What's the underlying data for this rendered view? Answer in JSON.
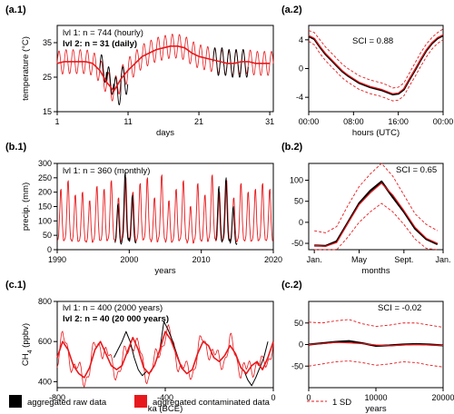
{
  "legend": {
    "raw": "aggregated raw data",
    "contaminated": "aggregated contaminated data",
    "sd": "1 SD",
    "colors": {
      "raw": "#000000",
      "contaminated": "#e8191c",
      "sd": "#e8191c"
    }
  },
  "chart_data": [
    {
      "id": "a1",
      "panel_label": "(a.1)",
      "type": "line",
      "xlabel": "days",
      "ylabel": "temperature (°C)",
      "xlim": [
        1,
        31.5
      ],
      "ylim": [
        15,
        40
      ],
      "xticks": [
        1,
        11,
        21,
        31
      ],
      "yticks": [
        15,
        25,
        35
      ],
      "annotations": [
        {
          "text": "lvl 1: n = 744 (hourly)",
          "bold": false
        },
        {
          "text": "lvl 2: n = 31 (daily)",
          "bold": true
        }
      ],
      "hourly_amplitude": 3.5,
      "daily_mean": [
        29,
        29.5,
        29.5,
        29.5,
        29.5,
        29,
        27,
        23.5,
        21,
        24.5,
        27,
        29,
        31,
        32,
        33,
        33.5,
        34,
        34,
        33.5,
        32,
        31,
        30.5,
        30,
        29.5,
        29,
        29,
        29.5,
        29.5,
        29,
        29,
        29
      ],
      "raw_daily_mean": [
        null,
        null,
        null,
        null,
        null,
        null,
        27.5,
        24,
        21,
        24,
        null,
        null,
        null,
        null,
        null,
        null,
        null,
        null,
        null,
        null,
        null,
        null,
        29.5,
        29.5,
        29,
        29,
        29,
        null,
        null,
        null,
        null
      ]
    },
    {
      "id": "a2",
      "panel_label": "(a.2)",
      "type": "line",
      "xlabel": "hours (UTC)",
      "ylabel": "",
      "xlim": [
        0,
        24
      ],
      "ylim": [
        -6,
        6
      ],
      "xticks": [
        0,
        8,
        16,
        24
      ],
      "xtick_labels": [
        "00:00",
        "08:00",
        "16:00",
        "00:00"
      ],
      "yticks": [
        -4,
        0,
        4
      ],
      "annotations": [
        {
          "text": "SCI = 0.88",
          "bold": false
        }
      ],
      "x": [
        0,
        1,
        2,
        3,
        4,
        5,
        6,
        7,
        8,
        9,
        10,
        11,
        12,
        13,
        14,
        15,
        16,
        17,
        18,
        19,
        20,
        21,
        22,
        23,
        24
      ],
      "series": [
        {
          "key": "raw",
          "values": [
            4.5,
            4.1,
            3.0,
            2.0,
            1.2,
            0.4,
            -0.4,
            -1.0,
            -1.5,
            -2.0,
            -2.3,
            -2.6,
            -2.8,
            -3.0,
            -3.3,
            -3.6,
            -3.5,
            -2.9,
            -1.5,
            -0.2,
            1.2,
            2.5,
            3.5,
            4.2,
            4.6
          ]
        },
        {
          "key": "contaminated",
          "values": [
            4.6,
            4.2,
            3.1,
            2.1,
            1.3,
            0.5,
            -0.3,
            -0.9,
            -1.4,
            -1.9,
            -2.2,
            -2.5,
            -2.7,
            -2.9,
            -3.2,
            -3.5,
            -3.4,
            -2.8,
            -1.4,
            -0.1,
            1.3,
            2.6,
            3.6,
            4.3,
            4.7
          ]
        },
        {
          "key": "sd",
          "values": [
            5.3,
            5.0,
            4.0,
            3.0,
            2.2,
            1.4,
            0.6,
            0.0,
            -0.5,
            -1.0,
            -1.3,
            -1.6,
            -1.8,
            -2.0,
            -2.3,
            -2.7,
            -2.6,
            -2.0,
            -0.6,
            0.8,
            2.2,
            3.4,
            4.3,
            5.0,
            5.5
          ]
        },
        {
          "key": "sd",
          "values": [
            3.8,
            3.3,
            2.1,
            1.1,
            0.3,
            -0.5,
            -1.3,
            -1.9,
            -2.4,
            -2.9,
            -3.2,
            -3.5,
            -3.7,
            -3.9,
            -4.2,
            -4.5,
            -4.4,
            -3.8,
            -2.4,
            -1.1,
            0.3,
            1.6,
            2.7,
            3.5,
            4.0
          ]
        }
      ]
    },
    {
      "id": "b1",
      "panel_label": "(b.1)",
      "type": "line",
      "xlabel": "years",
      "ylabel": "precip. (mm)",
      "xlim": [
        1990,
        2020
      ],
      "ylim": [
        0,
        300
      ],
      "xticks": [
        1990,
        2000,
        2010,
        2020
      ],
      "yticks": [
        0,
        50,
        100,
        150,
        200,
        250,
        300
      ],
      "annotations": [
        {
          "text": "lvl 1: n = 360 (monthly)",
          "bold": false
        }
      ],
      "annual_peak": [
        210,
        240,
        190,
        200,
        170,
        220,
        210,
        240,
        180,
        250,
        200,
        230,
        250,
        180,
        260,
        170,
        210,
        240,
        150,
        230,
        190,
        260,
        200,
        240,
        180,
        230,
        200,
        210,
        230,
        210
      ],
      "raw_annual_peak": [
        null,
        null,
        null,
        null,
        null,
        null,
        null,
        null,
        160,
        270,
        190,
        null,
        null,
        null,
        null,
        null,
        null,
        null,
        null,
        null,
        null,
        null,
        220,
        250,
        150,
        null,
        null,
        null,
        null,
        null
      ]
    },
    {
      "id": "b2",
      "panel_label": "(b.2)",
      "type": "line",
      "xlabel": "months",
      "ylabel": "",
      "xlim": [
        0.5,
        12.5
      ],
      "ylim": [
        -65,
        140
      ],
      "xticks": [
        1,
        5,
        9,
        12.5
      ],
      "xtick_labels": [
        "Jan.",
        "May",
        "Sept.",
        "Jan."
      ],
      "yticks": [
        -50,
        0,
        50,
        100
      ],
      "annotations": [
        {
          "text": "SCI = 0.65",
          "bold": false
        }
      ],
      "x": [
        1,
        2,
        3,
        4,
        5,
        6,
        7,
        8,
        9,
        10,
        11,
        12
      ],
      "series": [
        {
          "key": "raw",
          "values": [
            -55,
            -56,
            -45,
            0,
            45,
            75,
            97,
            60,
            25,
            -15,
            -40,
            -52
          ]
        },
        {
          "key": "contaminated",
          "values": [
            -55,
            -57,
            -48,
            -2,
            42,
            70,
            93,
            65,
            28,
            -12,
            -38,
            -50
          ]
        },
        {
          "key": "sd",
          "values": [
            -20,
            -25,
            -10,
            40,
            85,
            115,
            150,
            110,
            65,
            20,
            -5,
            -20
          ]
        },
        {
          "key": "sd",
          "values": [
            -75,
            -78,
            -70,
            -35,
            0,
            25,
            45,
            25,
            -5,
            -40,
            -62,
            -70
          ]
        }
      ]
    },
    {
      "id": "c1",
      "panel_label": "(c.1)",
      "type": "line",
      "xlabel": "ka (BCE)",
      "ylabel": "CH4 (ppbv)",
      "xlim": [
        -800,
        0
      ],
      "ylim": [
        370,
        800
      ],
      "xticks": [
        -800,
        -400,
        0
      ],
      "yticks": [
        400,
        600,
        800
      ],
      "annotations": [
        {
          "text": "lvl 1: n = 400 (2000 years)",
          "bold": false
        },
        {
          "text": "lvl 2: n = 40 (20 000 years)",
          "bold": true
        }
      ],
      "smooth_x": [
        -800,
        -780,
        -760,
        -740,
        -720,
        -700,
        -680,
        -660,
        -640,
        -620,
        -600,
        -580,
        -560,
        -540,
        -520,
        -500,
        -480,
        -460,
        -440,
        -420,
        -400,
        -380,
        -360,
        -340,
        -320,
        -300,
        -280,
        -260,
        -240,
        -220,
        -200,
        -180,
        -160,
        -140,
        -120,
        -100,
        -80,
        -60,
        -40,
        -20,
        0
      ],
      "smooth_y": [
        520,
        600,
        560,
        480,
        440,
        420,
        470,
        560,
        600,
        540,
        480,
        460,
        480,
        550,
        620,
        560,
        470,
        440,
        480,
        560,
        650,
        610,
        540,
        470,
        440,
        460,
        540,
        600,
        580,
        520,
        500,
        530,
        580,
        540,
        470,
        440,
        480,
        500,
        460,
        520,
        600
      ],
      "raw_segments": [
        {
          "x": [
            -590,
            -575,
            -560,
            -545,
            -530,
            -515,
            -500,
            -485,
            -470
          ],
          "y": [
            520,
            560,
            600,
            650,
            600,
            520,
            460,
            430,
            450
          ]
        },
        {
          "x": [
            -420,
            -405,
            -390,
            -375,
            -360,
            -345
          ],
          "y": [
            560,
            700,
            660,
            610,
            550,
            490
          ]
        },
        {
          "x": [
            -110,
            -95,
            -80,
            -65,
            -50,
            -35,
            -20
          ],
          "y": [
            460,
            410,
            380,
            420,
            470,
            520,
            600
          ]
        }
      ]
    },
    {
      "id": "c2",
      "panel_label": "(c.2)",
      "type": "line",
      "xlabel": "years",
      "ylabel": "",
      "xlim": [
        0,
        20000
      ],
      "ylim": [
        -100,
        100
      ],
      "xticks": [
        0,
        10000,
        20000
      ],
      "xtick_labels": [
        "0",
        "10000",
        "20000"
      ],
      "yticks": [
        -50,
        0,
        50
      ],
      "annotations": [
        {
          "text": "SCI = -0.02",
          "bold": false
        }
      ],
      "x": [
        0,
        2000,
        4000,
        6000,
        8000,
        10000,
        12000,
        14000,
        16000,
        18000,
        20000
      ],
      "series": [
        {
          "key": "raw",
          "values": [
            0,
            3,
            6,
            8,
            3,
            -3,
            -2,
            0,
            1,
            0,
            -2
          ]
        },
        {
          "key": "contaminated",
          "values": [
            0,
            2,
            5,
            4,
            2,
            -1,
            -3,
            -1,
            0,
            -1,
            -2
          ]
        },
        {
          "key": "sd",
          "values": [
            52,
            50,
            55,
            58,
            48,
            42,
            45,
            50,
            50,
            45,
            40
          ]
        },
        {
          "key": "sd",
          "values": [
            -50,
            -45,
            -40,
            -38,
            -42,
            -48,
            -45,
            -40,
            -42,
            -48,
            -52
          ]
        }
      ]
    }
  ]
}
